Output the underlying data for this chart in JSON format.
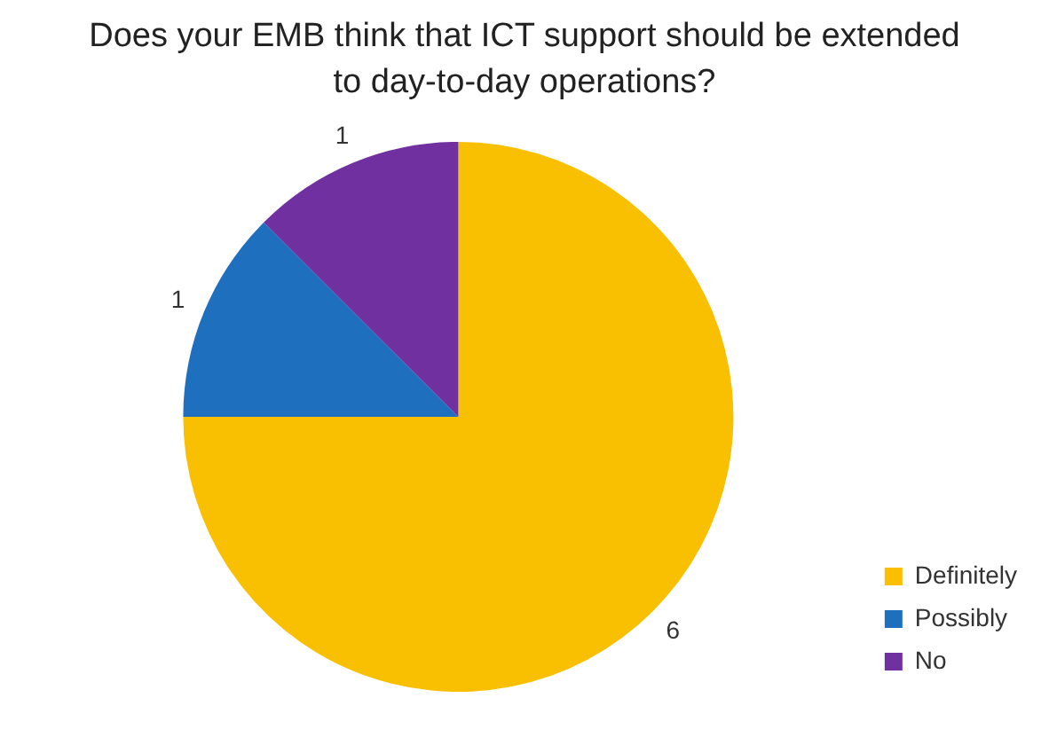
{
  "chart_data": {
    "type": "pie",
    "title": "Does your EMB think that ICT support should be extended to day-to-day operations?",
    "categories": [
      "Definitely",
      "Possibly",
      "No"
    ],
    "values": [
      6,
      1,
      1
    ],
    "colors": [
      "#f8c000",
      "#1f6fbf",
      "#7030a0"
    ],
    "data_labels": true,
    "legend": "bottom right"
  }
}
